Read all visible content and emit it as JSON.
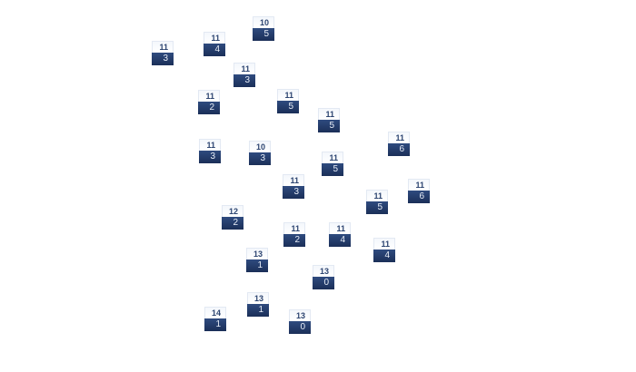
{
  "colors": {
    "label_top_text": "#2d4571",
    "label_bottom_bg": "#23396a",
    "label_top_bg": "#f4f7fc"
  },
  "nodes": [
    {
      "top": "10",
      "bottom": "5"
    },
    {
      "top": "11",
      "bottom": "4"
    },
    {
      "top": "11",
      "bottom": "3"
    },
    {
      "top": "11",
      "bottom": "3"
    },
    {
      "top": "11",
      "bottom": "2"
    },
    {
      "top": "11",
      "bottom": "5"
    },
    {
      "top": "11",
      "bottom": "5"
    },
    {
      "top": "11",
      "bottom": "6"
    },
    {
      "top": "11",
      "bottom": "3"
    },
    {
      "top": "10",
      "bottom": "3"
    },
    {
      "top": "11",
      "bottom": "5"
    },
    {
      "top": "11",
      "bottom": "3"
    },
    {
      "top": "11",
      "bottom": "6"
    },
    {
      "top": "11",
      "bottom": "5"
    },
    {
      "top": "12",
      "bottom": "2"
    },
    {
      "top": "11",
      "bottom": "2"
    },
    {
      "top": "11",
      "bottom": "4"
    },
    {
      "top": "11",
      "bottom": "4"
    },
    {
      "top": "13",
      "bottom": "1"
    },
    {
      "top": "13",
      "bottom": "0"
    },
    {
      "top": "13",
      "bottom": "1"
    },
    {
      "top": "14",
      "bottom": "1"
    },
    {
      "top": "13",
      "bottom": "0"
    }
  ]
}
